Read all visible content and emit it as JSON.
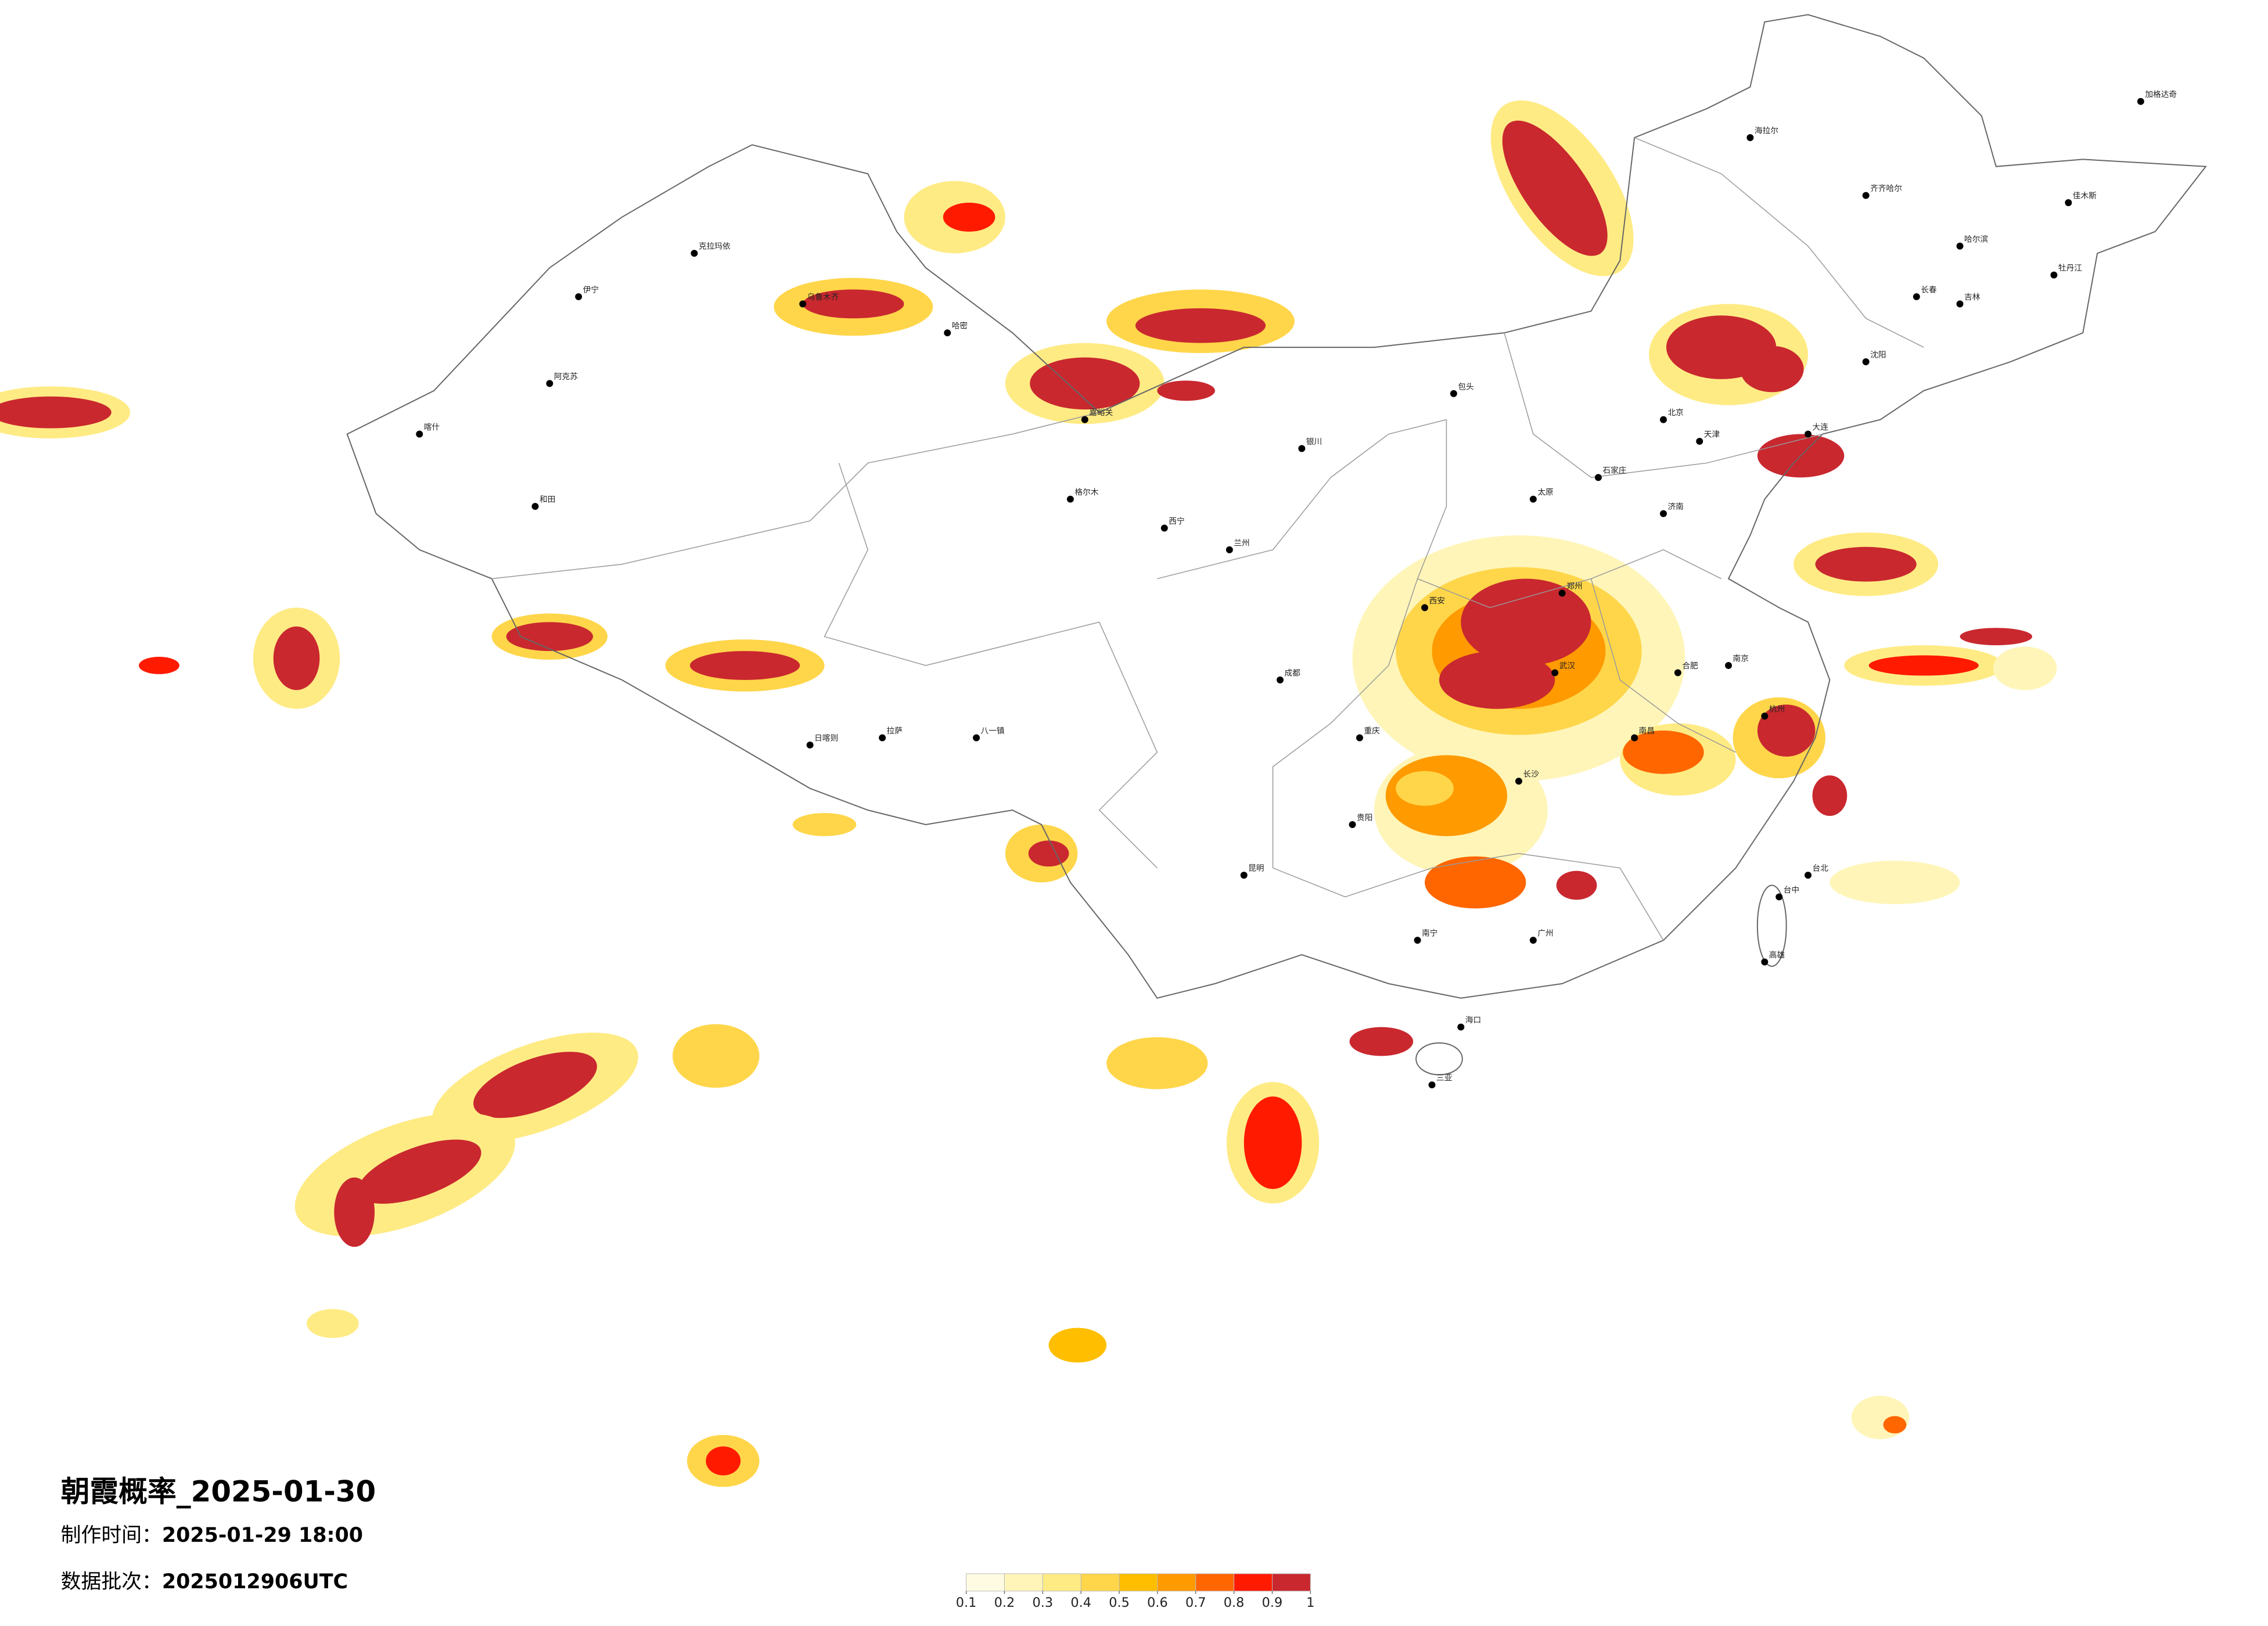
{
  "header": {
    "title": "朝霞概率_2025-01-30",
    "made_label": "制作时间：",
    "made_value": "2025-01-29 18:00",
    "batch_label": "数据批次：",
    "batch_value": "2025012906UTC"
  },
  "legend": {
    "ticks": [
      0.1,
      0.2,
      0.3,
      0.4,
      0.5,
      0.6,
      0.7,
      0.8,
      0.9,
      1
    ],
    "colors": [
      "#fffbe3",
      "#fff5b8",
      "#ffeb84",
      "#ffd64a",
      "#ffbf00",
      "#ff9a00",
      "#ff6600",
      "#ff1a00",
      "#c9282f"
    ]
  },
  "cities": [
    "海拉尔",
    "齐齐哈尔",
    "哈尔滨",
    "长春",
    "吉林",
    "沈阳",
    "大连",
    "北京",
    "天津",
    "石家庄",
    "太原",
    "包头",
    "济南",
    "郑州",
    "南京",
    "杭州",
    "合肥",
    "武汉",
    "长沙",
    "南昌",
    "广州",
    "南宁",
    "贵阳",
    "昆明",
    "成都",
    "重庆",
    "西安",
    "兰州",
    "西宁",
    "银川",
    "乌鲁木齐",
    "伊宁",
    "克拉玛依",
    "喀什",
    "和田",
    "阿克苏",
    "拉萨",
    "日喀则",
    "格尔木",
    "海口",
    "三亚",
    "台北",
    "台中",
    "高雄",
    "哈密",
    "嘉峪关",
    "加格达奇",
    "佳木斯",
    "牡丹江",
    "八一镇"
  ]
}
